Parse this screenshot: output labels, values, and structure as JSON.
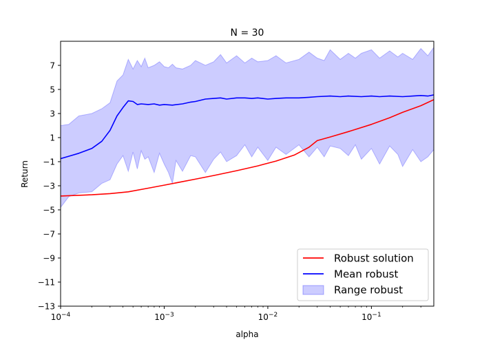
{
  "chart_data": {
    "type": "line",
    "title": "N = 30",
    "xlabel": "alpha",
    "ylabel": "Return",
    "xscale": "log",
    "xlim": [
      0.0001,
      0.4
    ],
    "ylim": [
      -13,
      9
    ],
    "xticks": [
      {
        "value": 0.0001,
        "base": "10",
        "exp": "−4"
      },
      {
        "value": 0.001,
        "base": "10",
        "exp": "−3"
      },
      {
        "value": 0.01,
        "base": "10",
        "exp": "−2"
      },
      {
        "value": 0.1,
        "base": "10",
        "exp": "−1"
      }
    ],
    "yticks": [
      {
        "value": 7,
        "label": "7"
      },
      {
        "value": 5,
        "label": "5"
      },
      {
        "value": 3,
        "label": "3"
      },
      {
        "value": 1,
        "label": "1"
      },
      {
        "value": -1,
        "label": "−1"
      },
      {
        "value": -3,
        "label": "−3"
      },
      {
        "value": -5,
        "label": "−5"
      },
      {
        "value": -7,
        "label": "−7"
      },
      {
        "value": -9,
        "label": "−9"
      },
      {
        "value": -11,
        "label": "−11"
      },
      {
        "value": -13,
        "label": "−13"
      }
    ],
    "grid": false,
    "legend_position": "lower-right",
    "series": [
      {
        "name": "Robust solution",
        "kind": "line",
        "color": "#ff0000",
        "x": [
          0.0001,
          0.0002,
          0.0003,
          0.00045,
          0.0007,
          0.001,
          0.002,
          0.003,
          0.005,
          0.008,
          0.012,
          0.018,
          0.025,
          0.03,
          0.04,
          0.06,
          0.1,
          0.15,
          0.2,
          0.3,
          0.4
        ],
        "y": [
          -3.85,
          -3.75,
          -3.65,
          -3.5,
          -3.2,
          -2.95,
          -2.45,
          -2.15,
          -1.75,
          -1.35,
          -0.95,
          -0.45,
          0.2,
          0.75,
          1.05,
          1.5,
          2.1,
          2.65,
          3.1,
          3.65,
          4.15
        ]
      },
      {
        "name": "Mean robust",
        "kind": "line",
        "color": "#0000ff",
        "x": [
          0.0001,
          0.00012,
          0.00015,
          0.0002,
          0.00025,
          0.0003,
          0.00035,
          0.0004,
          0.00045,
          0.0005,
          0.00055,
          0.0006,
          0.0007,
          0.0008,
          0.0009,
          0.001,
          0.0012,
          0.0015,
          0.0018,
          0.002,
          0.0025,
          0.003,
          0.0035,
          0.004,
          0.005,
          0.006,
          0.007,
          0.008,
          0.01,
          0.012,
          0.015,
          0.02,
          0.025,
          0.03,
          0.04,
          0.05,
          0.06,
          0.08,
          0.1,
          0.12,
          0.15,
          0.2,
          0.25,
          0.3,
          0.35,
          0.4
        ],
        "y": [
          -0.75,
          -0.55,
          -0.3,
          0.1,
          0.7,
          1.6,
          2.8,
          3.5,
          4.05,
          4.0,
          3.75,
          3.8,
          3.75,
          3.8,
          3.7,
          3.75,
          3.7,
          3.8,
          3.95,
          4.0,
          4.2,
          4.25,
          4.3,
          4.2,
          4.3,
          4.3,
          4.25,
          4.3,
          4.2,
          4.25,
          4.3,
          4.3,
          4.35,
          4.4,
          4.45,
          4.4,
          4.45,
          4.4,
          4.45,
          4.4,
          4.45,
          4.4,
          4.45,
          4.5,
          4.45,
          4.55
        ]
      },
      {
        "name": "Range robust",
        "kind": "band",
        "color": "#0000ff",
        "fill_opacity": 0.2,
        "x": [
          0.0001,
          0.00012,
          0.00015,
          0.0002,
          0.00025,
          0.0003,
          0.00035,
          0.0004,
          0.00045,
          0.0005,
          0.00055,
          0.0006,
          0.00065,
          0.0007,
          0.0008,
          0.0009,
          0.001,
          0.0011,
          0.0012,
          0.0013,
          0.0015,
          0.0018,
          0.002,
          0.0025,
          0.003,
          0.0035,
          0.004,
          0.005,
          0.006,
          0.007,
          0.008,
          0.01,
          0.012,
          0.015,
          0.02,
          0.025,
          0.03,
          0.035,
          0.04,
          0.05,
          0.06,
          0.07,
          0.08,
          0.1,
          0.12,
          0.15,
          0.18,
          0.2,
          0.25,
          0.3,
          0.35,
          0.4
        ],
        "upper": [
          2.0,
          2.1,
          2.8,
          3.0,
          3.4,
          3.9,
          5.7,
          6.2,
          7.5,
          6.7,
          7.4,
          6.9,
          7.6,
          6.8,
          7.0,
          7.3,
          6.9,
          6.8,
          7.1,
          6.8,
          6.7,
          7.0,
          7.4,
          7.0,
          7.3,
          7.9,
          7.2,
          7.8,
          7.2,
          7.6,
          7.3,
          7.4,
          7.8,
          7.2,
          7.5,
          8.1,
          7.6,
          7.4,
          8.3,
          7.5,
          8.0,
          7.6,
          8.0,
          8.3,
          7.6,
          8.2,
          7.7,
          8.0,
          7.5,
          8.4,
          7.8,
          8.5
        ],
        "lower": [
          -4.8,
          -3.9,
          -3.6,
          -3.5,
          -2.8,
          -2.5,
          -1.2,
          -0.5,
          -1.8,
          -0.2,
          -1.6,
          -0.1,
          -0.8,
          -0.6,
          -1.9,
          -0.3,
          -1.2,
          -1.9,
          -2.8,
          -0.9,
          -1.8,
          -0.5,
          -0.6,
          -1.9,
          -0.8,
          -0.2,
          -1.0,
          -0.5,
          0.4,
          -0.6,
          0.2,
          -0.9,
          0.2,
          -0.4,
          0.4,
          -0.6,
          0.2,
          -0.6,
          0.3,
          0.1,
          -0.5,
          0.4,
          -0.8,
          0.1,
          -1.2,
          0.3,
          -0.4,
          -1.4,
          0.0,
          -1.0,
          -0.6,
          0.0
        ]
      }
    ]
  }
}
